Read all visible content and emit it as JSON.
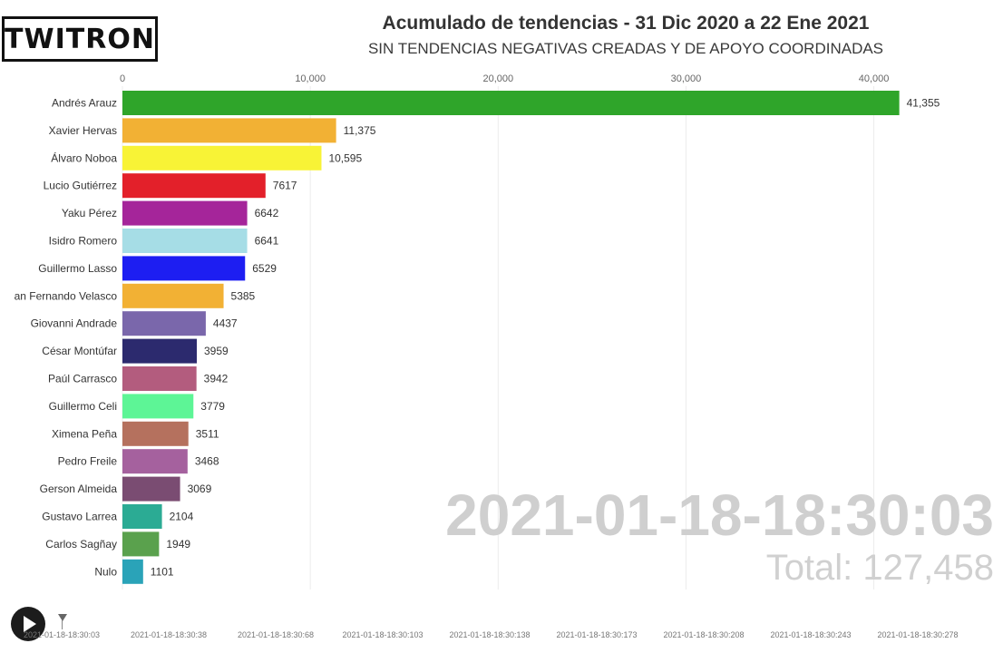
{
  "logo": {
    "text": "TWITRON"
  },
  "header": {
    "title": "Acumulado de tendencias - 31 Dic 2020 a 22 Ene 2021",
    "subtitle": "SIN TENDENCIAS NEGATIVAS CREADAS Y DE APOYO COORDINADAS"
  },
  "overlay": {
    "date": "2021-01-18-18:30:03",
    "total": "Total: 127,458"
  },
  "chart_data": {
    "type": "bar",
    "orientation": "horizontal",
    "xlim": [
      0,
      42000
    ],
    "ticks": [
      0,
      10000,
      20000,
      30000,
      40000
    ],
    "tick_labels": [
      "0",
      "10,000",
      "20,000",
      "30,000",
      "40,000"
    ],
    "grid": true,
    "categories": [
      "Andrés Arauz",
      "Xavier Hervas",
      "Álvaro Noboa",
      "Lucio Gutiérrez",
      "Yaku Pérez",
      "Isidro Romero",
      "Guillermo Lasso",
      "an Fernando Velasco",
      "Giovanni Andrade",
      "César Montúfar",
      "Paúl Carrasco",
      "Guillermo Celi",
      "Ximena Peña",
      "Pedro Freile",
      "Gerson Almeida",
      "Gustavo Larrea",
      "Carlos Sagñay",
      "Nulo"
    ],
    "values": [
      41355,
      11375,
      10595,
      7617,
      6642,
      6641,
      6529,
      5385,
      4437,
      3959,
      3942,
      3779,
      3511,
      3468,
      3069,
      2104,
      1949,
      1101
    ],
    "value_labels": [
      "41,355",
      "11,375",
      "10,595",
      "7617",
      "6642",
      "6641",
      "6529",
      "5385",
      "4437",
      "3959",
      "3942",
      "3779",
      "3511",
      "3468",
      "3069",
      "2104",
      "1949",
      "1101"
    ],
    "colors": [
      "#2fa52a",
      "#f2b134",
      "#f8f336",
      "#e3202a",
      "#a5259a",
      "#a6dde6",
      "#1d1ef2",
      "#f2b134",
      "#7a67ab",
      "#2c2a6e",
      "#b35c7e",
      "#5df596",
      "#b5715e",
      "#a5619e",
      "#7a4c72",
      "#2bab94",
      "#5aa14d",
      "#2aa3b8"
    ]
  },
  "timeline": {
    "labels": [
      "2021-01-18-18:30:03",
      "2021-01-18-18:30:38",
      "2021-01-18-18:30:68",
      "2021-01-18-18:30:103",
      "2021-01-18-18:30:138",
      "2021-01-18-18:30:173",
      "2021-01-18-18:30:208",
      "2021-01-18-18:30:243",
      "2021-01-18-18:30:278"
    ]
  }
}
